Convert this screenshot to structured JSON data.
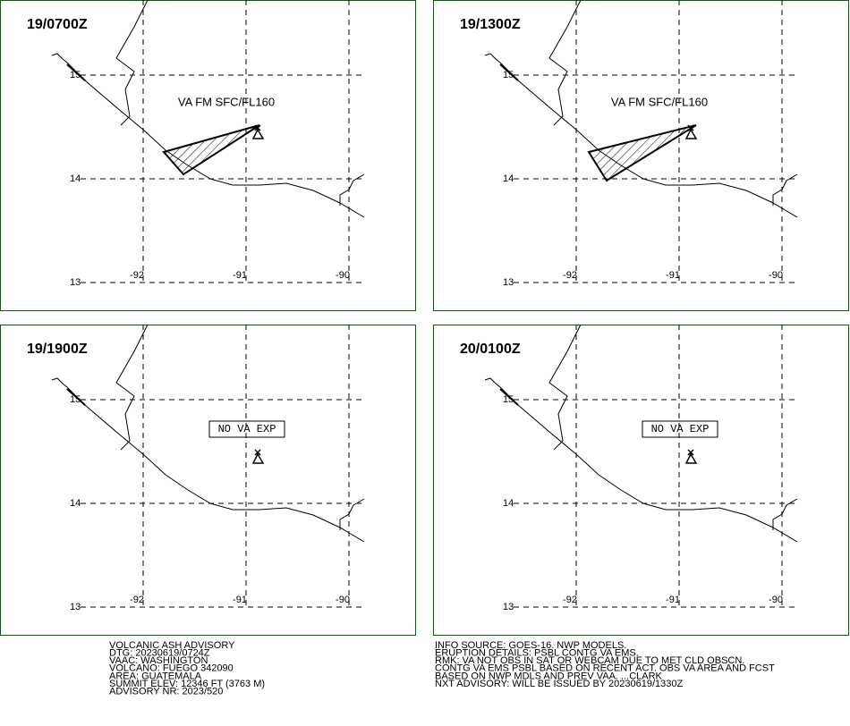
{
  "panels": [
    {
      "time": "19/0700Z",
      "note": "VA FM SFC/FL160",
      "lat_labels": [
        "15",
        "14",
        "13"
      ],
      "lon_labels": [
        "-92",
        "-91",
        "-90"
      ]
    },
    {
      "time": "19/1300Z",
      "note": "VA FM SFC/FL160",
      "lat_labels": [
        "15",
        "14",
        "13"
      ],
      "lon_labels": [
        "-92",
        "-91",
        "-90"
      ]
    },
    {
      "time": "19/1900Z",
      "note": "NO VA EXP",
      "lat_labels": [
        "15",
        "14",
        "13"
      ],
      "lon_labels": [
        "-92",
        "-91",
        "-90"
      ]
    },
    {
      "time": "20/0100Z",
      "note": "NO VA EXP",
      "lat_labels": [
        "15",
        "14",
        "13"
      ],
      "lon_labels": [
        "-92",
        "-91",
        "-90"
      ]
    }
  ],
  "info_left": [
    "VOLCANIC ASH ADVISORY",
    "DTG: 20230619/0724Z",
    "VAAC: WASHINGTON",
    "VOLCANO: FUEGO 342090",
    "AREA: GUATEMALA",
    "SUMMIT ELEV: 12346 FT (3763 M)",
    "ADVISORY NR: 2023/520"
  ],
  "info_right": [
    "INFO SOURCE: GOES-16. NWP MODELS.",
    "ERUPTION DETAILS: PSBL CONTG VA EMS.",
    "RMK: VA NOT OBS IN SAT OR WEBCAM DUE TO MET CLD OBSCN.",
    "CONTG VA EMS PSBL BASED ON RECENT ACT. OBS VA AREA AND FCST",
    "BASED ON NWP MDLS AND PREV VAA. ...CLARK",
    "NXT ADVISORY: WILL BE ISSUED BY 20230619/1330Z"
  ]
}
